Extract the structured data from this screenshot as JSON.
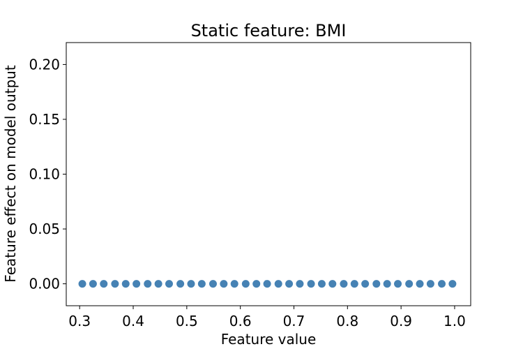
{
  "chart_data": {
    "type": "scatter",
    "title": "Static feature: BMI",
    "xlabel": "Feature value",
    "ylabel": "Feature effect on model output",
    "xlim": [
      0.275,
      1.03
    ],
    "ylim": [
      -0.02,
      0.22
    ],
    "xticks": [
      0.3,
      0.4,
      0.5,
      0.6,
      0.7,
      0.8,
      0.9,
      1.0
    ],
    "xtick_labels": [
      "0.3",
      "0.4",
      "0.5",
      "0.6",
      "0.7",
      "0.8",
      "0.9",
      "1.0"
    ],
    "yticks": [
      0.0,
      0.05,
      0.1,
      0.15,
      0.2
    ],
    "ytick_labels": [
      "0.00",
      "0.05",
      "0.10",
      "0.15",
      "0.20"
    ],
    "grid": false,
    "series": [
      {
        "color": "#4682b4",
        "x": [
          0.305,
          0.325,
          0.345,
          0.366,
          0.386,
          0.406,
          0.427,
          0.447,
          0.467,
          0.488,
          0.508,
          0.528,
          0.549,
          0.569,
          0.589,
          0.61,
          0.63,
          0.65,
          0.671,
          0.691,
          0.711,
          0.732,
          0.752,
          0.772,
          0.793,
          0.813,
          0.833,
          0.854,
          0.874,
          0.894,
          0.915,
          0.935,
          0.955,
          0.976,
          0.996
        ],
        "y": [
          0,
          0,
          0,
          0,
          0,
          0,
          0,
          0,
          0,
          0,
          0,
          0,
          0,
          0,
          0,
          0,
          0,
          0,
          0,
          0,
          0,
          0,
          0,
          0,
          0,
          0,
          0,
          0,
          0,
          0,
          0,
          0,
          0,
          0,
          0
        ]
      }
    ]
  }
}
